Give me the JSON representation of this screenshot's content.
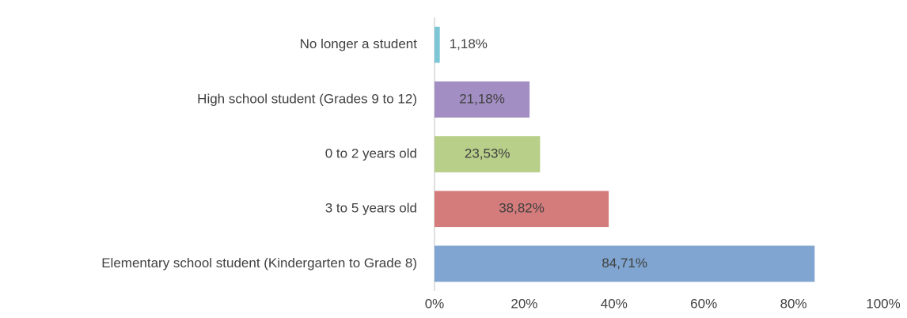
{
  "chart_data": {
    "type": "bar",
    "orientation": "horizontal",
    "categories": [
      "No longer a student",
      "High school student (Grades 9 to 12)",
      "0 to 2 years old",
      "3 to 5 years old",
      "Elementary school student (Kindergarten to Grade 8)"
    ],
    "values": [
      1.18,
      21.18,
      23.53,
      38.82,
      84.71
    ],
    "value_labels": [
      "1,18%",
      "21,18%",
      "23,53%",
      "38,82%",
      "84,71%"
    ],
    "colors": [
      "#7cc6d6",
      "#a28ec2",
      "#b8cf8a",
      "#d47b7b",
      "#7fa5d0"
    ],
    "xlim": [
      0,
      100
    ],
    "xticks": [
      {
        "value": 0,
        "label": "0%"
      },
      {
        "value": 20,
        "label": "20%"
      },
      {
        "value": 40,
        "label": "40%"
      },
      {
        "value": 60,
        "label": "60%"
      },
      {
        "value": 80,
        "label": "80%"
      },
      {
        "value": 100,
        "label": "100%"
      }
    ],
    "grid": false
  }
}
